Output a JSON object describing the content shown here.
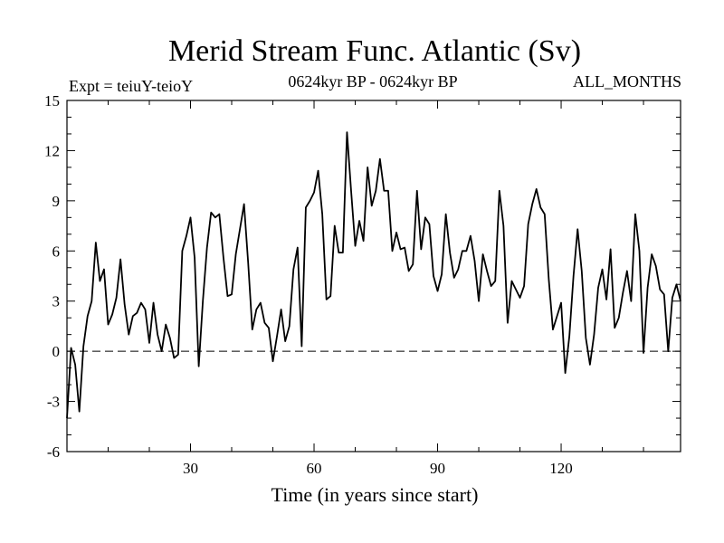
{
  "chart_data": {
    "type": "line",
    "title": "Merid Stream Func. Atlantic (Sv)",
    "subtitle_left": "Expt = teiuY-teioY",
    "subtitle_center": "0624kyr BP - 0624kyr BP",
    "subtitle_right": "ALL_MONTHS",
    "xlabel": "Time (in years since start)",
    "ylabel": "",
    "xlim": [
      0,
      149
    ],
    "ylim": [
      -6,
      15
    ],
    "xticks": [
      30,
      60,
      90,
      120
    ],
    "yticks": [
      -6,
      -3,
      0,
      3,
      6,
      9,
      12,
      15
    ],
    "reference_line": 0,
    "series": [
      {
        "name": "teiuY-teioY",
        "values": [
          -4.0,
          0.2,
          -0.8,
          -3.6,
          0.3,
          2.1,
          3.0,
          6.5,
          4.2,
          4.9,
          1.6,
          2.2,
          3.2,
          5.5,
          2.8,
          1.0,
          2.1,
          2.3,
          2.9,
          2.5,
          0.5,
          2.9,
          1.0,
          0.0,
          1.6,
          0.8,
          -0.4,
          -0.2,
          6.0,
          6.9,
          8.0,
          5.6,
          -0.9,
          3.0,
          6.2,
          8.3,
          8.0,
          8.2,
          5.6,
          3.3,
          3.4,
          5.8,
          7.3,
          8.8,
          5.3,
          1.3,
          2.5,
          2.9,
          1.7,
          1.4,
          -0.6,
          0.9,
          2.5,
          0.6,
          1.5,
          4.9,
          6.2,
          0.3,
          8.6,
          9.0,
          9.5,
          10.8,
          8.2,
          3.1,
          3.3,
          7.5,
          5.9,
          5.9,
          13.1,
          9.6,
          6.3,
          7.8,
          6.6,
          11.0,
          8.7,
          9.6,
          11.5,
          9.6,
          9.6,
          6.0,
          7.1,
          6.1,
          6.2,
          4.8,
          5.2,
          9.6,
          6.1,
          8.0,
          7.6,
          4.5,
          3.6,
          4.6,
          8.2,
          5.9,
          4.4,
          4.9,
          6.0,
          6.0,
          6.9,
          5.4,
          3.0,
          5.8,
          4.8,
          3.9,
          4.2,
          9.6,
          7.5,
          1.7,
          4.2,
          3.7,
          3.2,
          3.9,
          7.6,
          8.8,
          9.7,
          8.6,
          8.2,
          4.3,
          1.3,
          2.1,
          2.9,
          -1.3,
          0.9,
          4.5,
          7.3,
          4.8,
          0.8,
          -0.8,
          1.0,
          3.8,
          4.9,
          3.1,
          6.1,
          1.4,
          2.0,
          3.5,
          4.8,
          3.0,
          8.2,
          6.0,
          -0.1,
          3.8,
          5.8,
          5.1,
          3.7,
          3.4,
          0.0,
          3.2,
          4.0,
          3.0
        ]
      }
    ]
  }
}
